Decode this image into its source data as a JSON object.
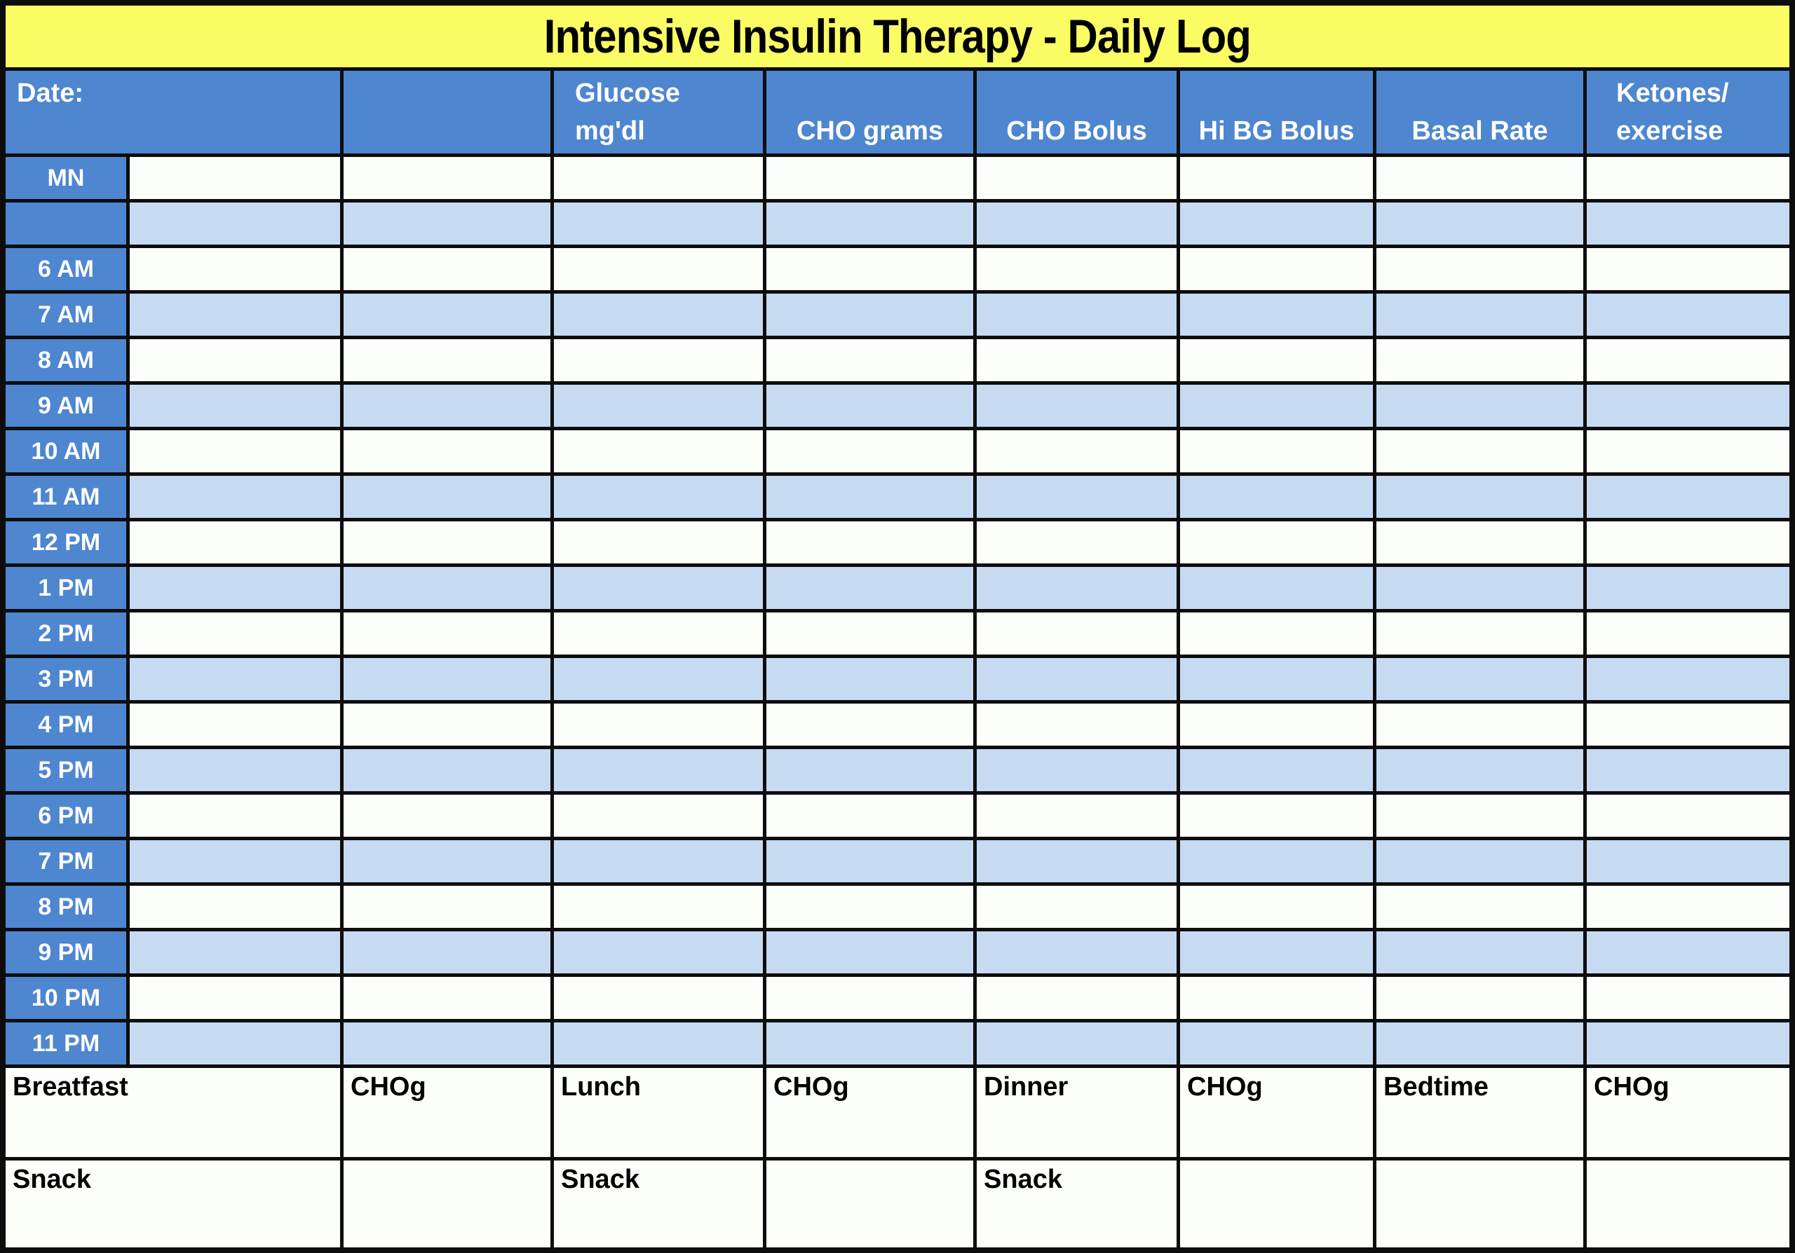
{
  "title": "Intensive Insulin Therapy - Daily Log",
  "colors": {
    "title_bg": "#FAFC64",
    "header_bg": "#4E86D0",
    "stripe_bg": "#C6DAF2",
    "row_bg": "#FCFEF9",
    "border": "#0D0D0D",
    "header_text": "#FFFFFF",
    "body_text": "#000000"
  },
  "header": {
    "cells": [
      {
        "line1": "Date:",
        "line2": ""
      },
      {
        "line1": "",
        "line2": ""
      },
      {
        "line1": "Glucose",
        "line2": "mg'dl"
      },
      {
        "line1": "",
        "line2": "CHO grams"
      },
      {
        "line1": "",
        "line2": "CHO Bolus"
      },
      {
        "line1": "",
        "line2": "Hi BG Bolus"
      },
      {
        "line1": "",
        "line2": "Basal Rate"
      },
      {
        "line1": "Ketones/",
        "line2": "exercise"
      }
    ]
  },
  "body": {
    "time_labels": [
      "MN",
      "",
      "6 AM",
      "7 AM",
      "8 AM",
      "9 AM",
      "10 AM",
      "11 AM",
      "12 PM",
      "1 PM",
      "2 PM",
      "3 PM",
      "4 PM",
      "5 PM",
      "6 PM",
      "7 PM",
      "8 PM",
      "9 PM",
      "10 PM",
      "11 PM"
    ],
    "data_columns": 8
  },
  "meals": {
    "row1": [
      "Breatfast",
      "CHOg",
      "Lunch",
      "CHOg",
      "Dinner",
      "CHOg",
      "Bedtime",
      "CHOg"
    ],
    "row2": [
      "Snack",
      "",
      "Snack",
      "",
      "Snack",
      "",
      "",
      ""
    ]
  }
}
